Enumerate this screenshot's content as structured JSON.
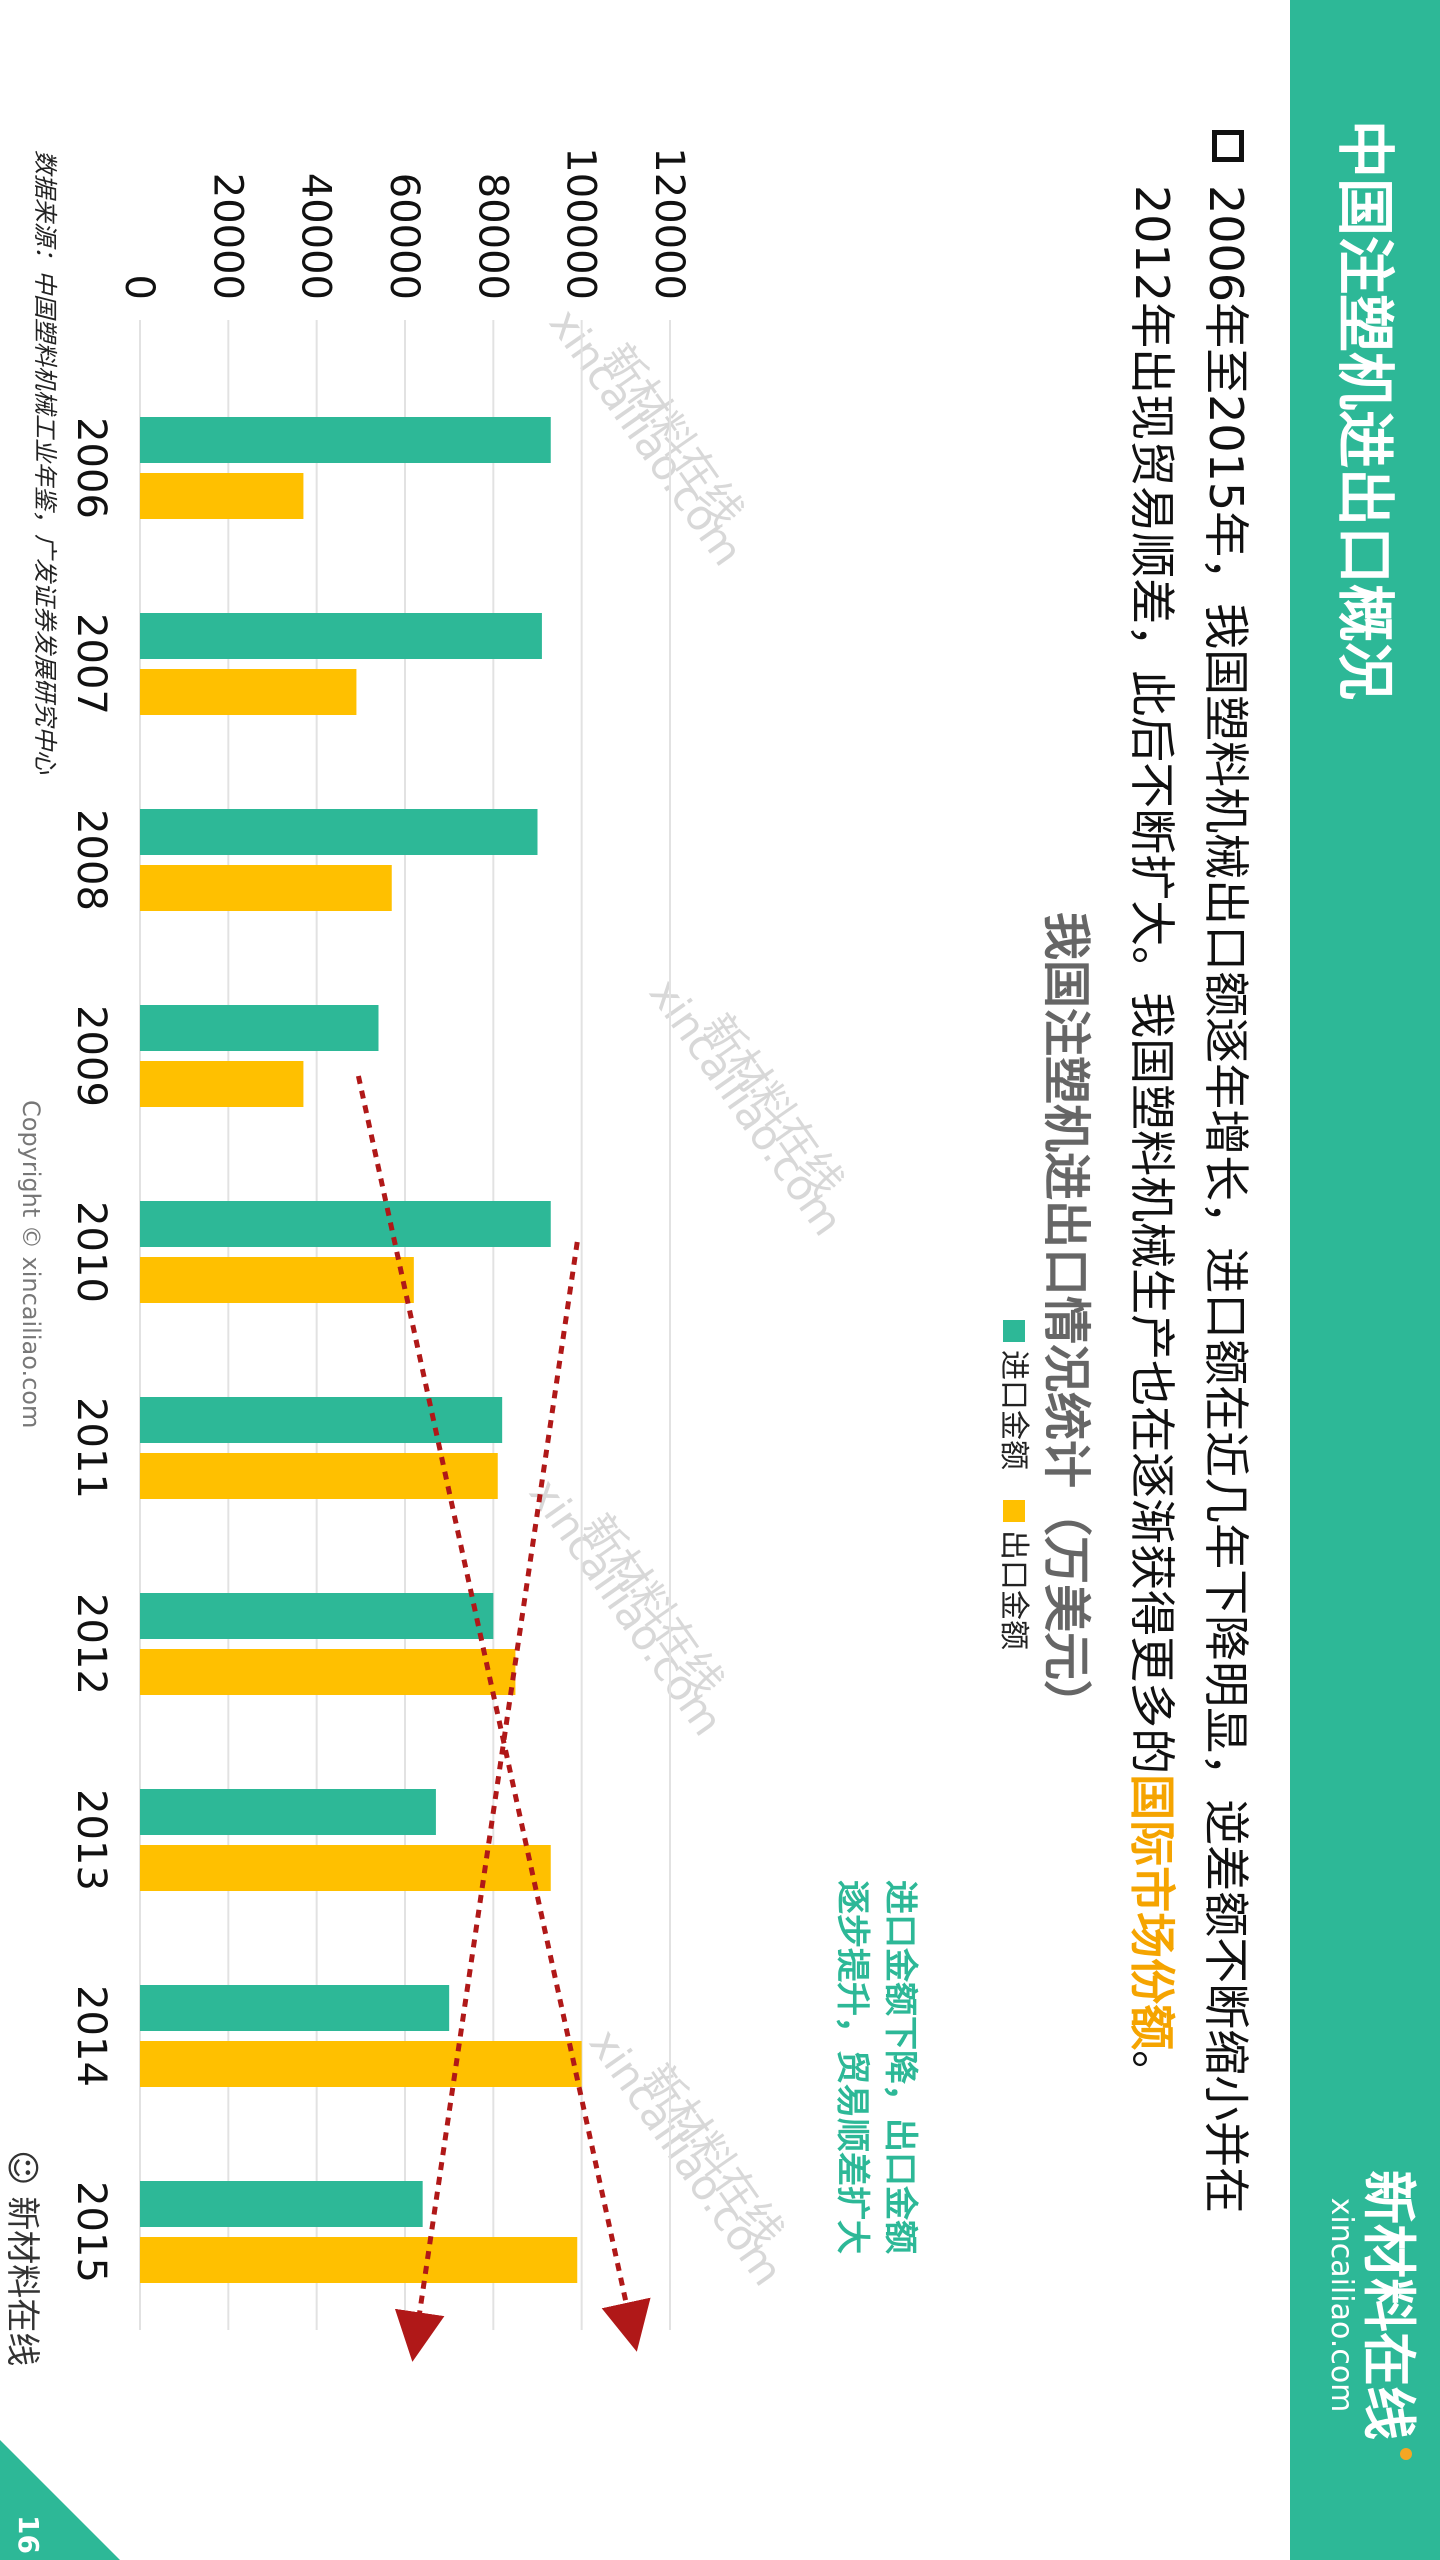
{
  "header": {
    "title": "中国注塑机进出口概况",
    "brand_name": "新材料在线",
    "brand_domain": "xincailiao.com"
  },
  "body": {
    "line1": "2006年至2015年，我国塑料机械出口额逐年增长，进口额在近几年下降明显，逆差额不断缩小并在",
    "line2": "2012年出现贸易顺差，此后不断扩大。我国塑料机械生产也在逐渐获得更多的",
    "line2_highlight": "国际市场份额",
    "line2_end": "。"
  },
  "callout": {
    "line1": "进口金额下降，出口金额",
    "line2": "逐步提升，贸易顺差扩大"
  },
  "footer": {
    "source": "数据来源：中国塑料机械工业年鉴，广发证券发展研究中心",
    "copyright": "Copyright © xincailiao.com",
    "page_number": "16",
    "wechat_label": "新材料在线"
  },
  "watermark": {
    "cn": "新材料在线",
    "en": "xincailiao.com"
  },
  "colors": {
    "import": "#2db897",
    "export": "#ffc000",
    "trend_arrow": "#b01818",
    "highlight": "#f5a400"
  },
  "chart_data": {
    "type": "bar",
    "title": "我国注塑机进出口情况统计（万美元）",
    "categories": [
      "2006",
      "2007",
      "2008",
      "2009",
      "2010",
      "2011",
      "2012",
      "2013",
      "2014",
      "2015"
    ],
    "series": [
      {
        "name": "进口金额",
        "values": [
          93000,
          91000,
          90000,
          54000,
          93000,
          82000,
          80000,
          67000,
          70000,
          64000
        ]
      },
      {
        "name": "出口金额",
        "values": [
          37000,
          49000,
          57000,
          37000,
          62000,
          81000,
          85000,
          93000,
          100000,
          99000
        ]
      }
    ],
    "ylim": [
      0,
      120000
    ],
    "yticks": [
      0,
      20000,
      40000,
      60000,
      80000,
      100000,
      120000
    ],
    "grid": true,
    "legend_position": "top"
  }
}
